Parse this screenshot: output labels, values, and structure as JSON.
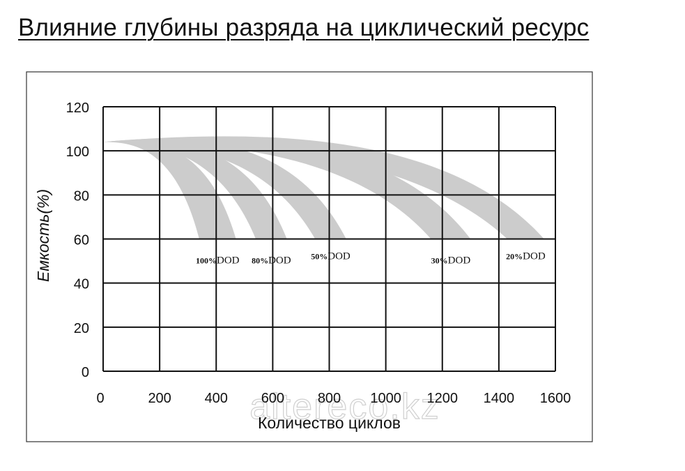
{
  "page_title": "Влияние глубины разряда на циклический ресурс",
  "watermark": "altereco.kz",
  "chart_data": {
    "type": "area",
    "title": "",
    "xlabel": "Количество циклов",
    "ylabel": "Емкость(%)",
    "xlim": [
      0,
      1600
    ],
    "ylim": [
      0,
      120
    ],
    "x_ticks": [
      0,
      200,
      400,
      600,
      800,
      1000,
      1200,
      1400,
      1600
    ],
    "y_ticks": [
      0,
      20,
      40,
      60,
      80,
      100,
      120
    ],
    "grid": true,
    "band_color": "#cccccc",
    "series": [
      {
        "name": "100%DOD",
        "prefix": "100%",
        "suffix": "DOD",
        "start": [
          0,
          104
        ],
        "upper": {
          "end": [
            470,
            60
          ],
          "peak": 106
        },
        "lower": {
          "end": [
            340,
            60
          ],
          "peak": 104
        }
      },
      {
        "name": "80%DOD",
        "prefix": "80%",
        "suffix": "DOD",
        "start": [
          0,
          104
        ],
        "upper": {
          "end": [
            650,
            60
          ],
          "peak": 107
        },
        "lower": {
          "end": [
            540,
            60
          ],
          "peak": 104
        }
      },
      {
        "name": "50%DOD",
        "prefix": "50%",
        "suffix": "DOD",
        "start": [
          0,
          104
        ],
        "upper": {
          "end": [
            860,
            60
          ],
          "peak": 108
        },
        "lower": {
          "end": [
            750,
            60
          ],
          "peak": 104
        }
      },
      {
        "name": "30%DOD",
        "prefix": "30%",
        "suffix": "DOD",
        "start": [
          0,
          104
        ],
        "upper": {
          "end": [
            1300,
            60
          ],
          "peak": 109
        },
        "lower": {
          "end": [
            1160,
            60
          ],
          "peak": 104
        }
      },
      {
        "name": "20%DOD",
        "prefix": "20%",
        "suffix": "DOD",
        "start": [
          0,
          104
        ],
        "upper": {
          "end": [
            1560,
            60
          ],
          "peak": 110
        },
        "lower": {
          "end": [
            1430,
            60
          ],
          "peak": 104
        }
      }
    ]
  }
}
